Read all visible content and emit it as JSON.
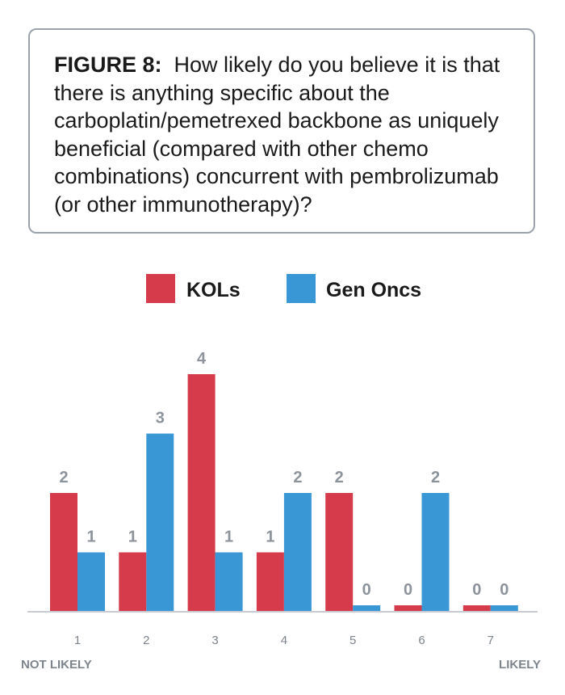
{
  "title": {
    "label": "FIGURE 8:",
    "question": "How likely do you believe it is that there is anything specific about the carboplatin/pemetrexed backbone as uniquely beneficial (compared with other chemo combinations) concurrent with pembrolizumab (or other immunotherapy)?"
  },
  "scale_labels": {
    "low": "NOT LIKELY",
    "high": "LIKELY"
  },
  "colors": {
    "kols": "#d63b4b",
    "gen_oncs": "#3a97d6",
    "axis": "#c8ccd0",
    "frame": "#9aa3ad"
  },
  "chart_data": {
    "type": "bar",
    "categories": [
      "1",
      "2",
      "3",
      "4",
      "5",
      "6",
      "7"
    ],
    "series": [
      {
        "name": "KOLs",
        "values": [
          2,
          1,
          4,
          1,
          2,
          0,
          0
        ]
      },
      {
        "name": "Gen Oncs",
        "values": [
          1,
          3,
          1,
          2,
          0,
          2,
          0
        ]
      }
    ],
    "ylim": [
      0,
      4
    ],
    "grid": false,
    "legend_position": "top-center",
    "data_labels": true
  }
}
